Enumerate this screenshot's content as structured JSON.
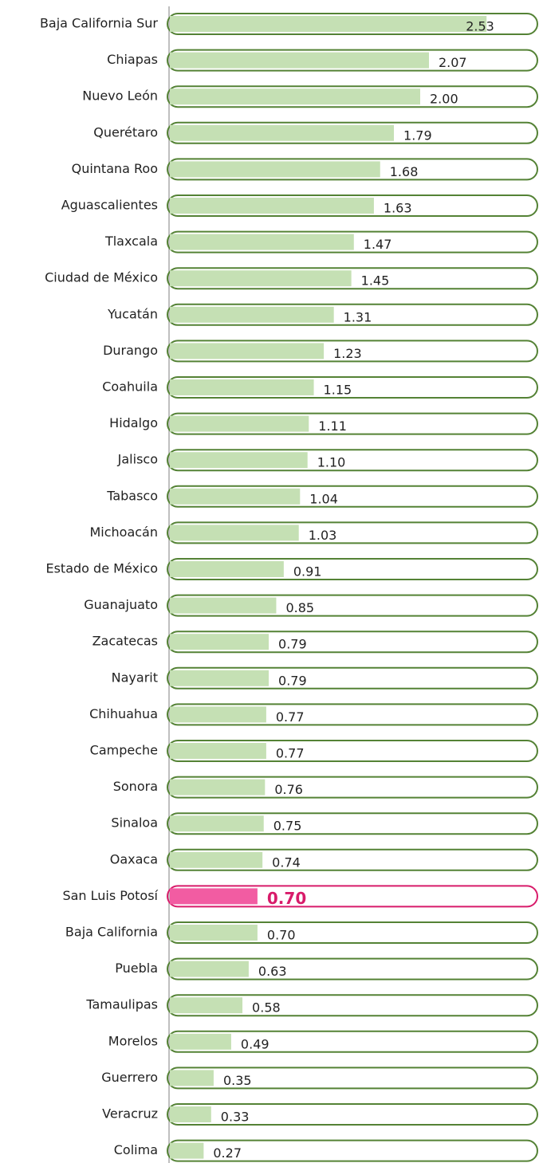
{
  "chart_data": {
    "type": "bar",
    "orientation": "horizontal",
    "categories": [
      "Baja California Sur",
      "Chiapas",
      "Nuevo León",
      "Querétaro",
      "Quintana Roo",
      "Aguascalientes",
      "Tlaxcala",
      "Ciudad de México",
      "Yucatán",
      "Durango",
      "Coahuila",
      "Hidalgo",
      "Jalisco",
      "Tabasco",
      "Michoacán",
      "Estado de México",
      "Guanajuato",
      "Zacatecas",
      "Nayarit",
      "Chihuahua",
      "Campeche",
      "Sonora",
      "Sinaloa",
      "Oaxaca",
      "San Luis Potosí",
      "Baja California",
      "Puebla",
      "Tamaulipas",
      "Morelos",
      "Guerrero",
      "Veracruz",
      "Colima"
    ],
    "values": [
      2.53,
      2.07,
      2.0,
      1.79,
      1.68,
      1.63,
      1.47,
      1.45,
      1.31,
      1.23,
      1.15,
      1.11,
      1.1,
      1.04,
      1.03,
      0.91,
      0.85,
      0.79,
      0.79,
      0.77,
      0.77,
      0.76,
      0.75,
      0.74,
      0.7,
      0.7,
      0.63,
      0.58,
      0.49,
      0.35,
      0.33,
      0.27
    ],
    "value_labels": [
      "2.53",
      "2.07",
      "2.00",
      "1.79",
      "1.68",
      "1.63",
      "1.47",
      "1.45",
      "1.31",
      "1.23",
      "1.15",
      "1.11",
      "1.10",
      "1.04",
      "1.03",
      "0.91",
      "0.85",
      "0.79",
      "0.79",
      "0.77",
      "0.77",
      "0.76",
      "0.75",
      "0.74",
      "0.70",
      "0.70",
      "0.63",
      "0.58",
      "0.49",
      "0.35",
      "0.33",
      "0.27"
    ],
    "color": "#c5e0b4",
    "edge_color": "#548235",
    "highlight": {
      "index": 24,
      "color": "#f25ca2",
      "edge_color": "#d81b6a"
    },
    "xlim": [
      0,
      3
    ]
  }
}
